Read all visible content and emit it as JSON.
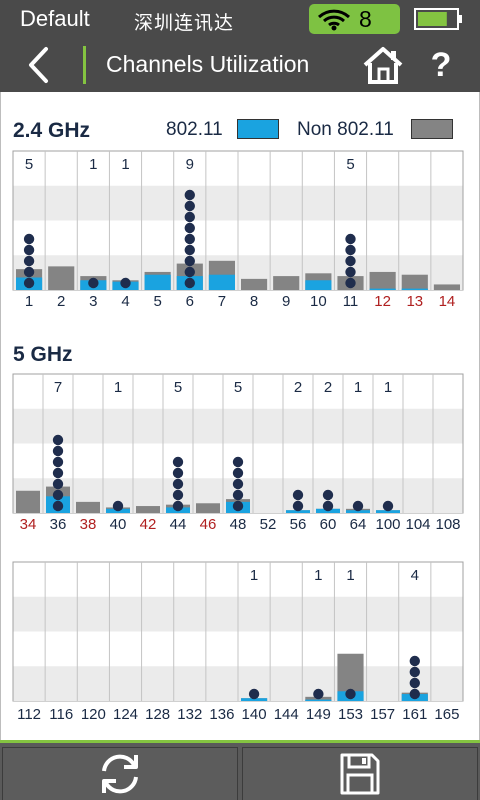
{
  "status": {
    "profile": "Default",
    "company": "深圳连讯达",
    "wifi_count": "8",
    "icons": [
      "wifi-icon",
      "battery-icon"
    ],
    "battery_level": 0.8
  },
  "title_bar": {
    "title": "Channels Utilization",
    "icons": [
      "back-arrow-icon",
      "home-icon",
      "help-icon"
    ],
    "help_label": "?"
  },
  "legend": {
    "band_24": "2.4 GHz",
    "band_5": "5 GHz",
    "label_80211": "802.11",
    "label_non": "Non 802.11",
    "color_80211": "#1aa3e0",
    "color_non": "#848484"
  },
  "colors": {
    "dot": "#1f2d4d",
    "restricted_channel": "#b02020",
    "normal_channel": "#1a2a44",
    "accent": "#84c441"
  },
  "chart_data": [
    {
      "type": "bar",
      "title": "2.4 GHz",
      "categories": [
        "1",
        "2",
        "3",
        "4",
        "5",
        "6",
        "7",
        "8",
        "9",
        "10",
        "11",
        "12",
        "13",
        "14"
      ],
      "restricted": [
        "12",
        "13",
        "14"
      ],
      "series": [
        {
          "name": "802.11",
          "values": [
            9,
            0,
            7,
            6,
            11,
            10,
            11,
            0,
            0,
            7,
            0,
            1,
            1,
            0
          ]
        },
        {
          "name": "Non 802.11",
          "values": [
            15,
            17,
            10,
            7,
            13,
            19,
            21,
            8,
            10,
            12,
            10,
            13,
            11,
            4
          ]
        }
      ],
      "ap_counts": [
        5,
        0,
        1,
        1,
        0,
        9,
        0,
        0,
        0,
        0,
        5,
        0,
        0,
        0
      ],
      "ap_count_labels": [
        "5",
        "",
        "1",
        "1",
        "",
        "9",
        "",
        "",
        "",
        "",
        "5",
        "",
        "",
        ""
      ],
      "ylim": [
        0,
        100
      ]
    },
    {
      "type": "bar",
      "title": "5 GHz",
      "categories": [
        "34",
        "36",
        "38",
        "40",
        "42",
        "44",
        "46",
        "48",
        "52",
        "56",
        "60",
        "64",
        "100",
        "104",
        "108"
      ],
      "restricted": [
        "34",
        "38",
        "42",
        "46"
      ],
      "series": [
        {
          "name": "802.11",
          "values": [
            0,
            12,
            0,
            3,
            0,
            4,
            0,
            8,
            0,
            2,
            3,
            2,
            2,
            0,
            0
          ]
        },
        {
          "name": "Non 802.11",
          "values": [
            16,
            19,
            8,
            4,
            5,
            6,
            7,
            10,
            0,
            2,
            3,
            3,
            2,
            0,
            0
          ]
        }
      ],
      "ap_counts": [
        0,
        7,
        0,
        1,
        0,
        5,
        0,
        5,
        0,
        2,
        2,
        1,
        1,
        0,
        0
      ],
      "ap_count_labels": [
        "",
        "7",
        "",
        "1",
        "",
        "5",
        "",
        "5",
        "",
        "2",
        "2",
        "1",
        "1",
        "",
        ""
      ],
      "ylim": [
        0,
        100
      ]
    },
    {
      "type": "bar",
      "title": "",
      "categories": [
        "112",
        "116",
        "120",
        "124",
        "128",
        "132",
        "136",
        "140",
        "144",
        "149",
        "153",
        "157",
        "161",
        "165"
      ],
      "restricted": [],
      "series": [
        {
          "name": "802.11",
          "values": [
            0,
            0,
            0,
            0,
            0,
            0,
            0,
            2,
            0,
            1,
            7,
            0,
            5,
            0
          ]
        },
        {
          "name": "Non 802.11",
          "values": [
            0,
            0,
            0,
            0,
            0,
            0,
            0,
            2,
            0,
            3,
            34,
            0,
            6,
            0
          ]
        }
      ],
      "ap_counts": [
        0,
        0,
        0,
        0,
        0,
        0,
        0,
        1,
        0,
        1,
        1,
        0,
        4,
        0
      ],
      "ap_count_labels": [
        "",
        "",
        "",
        "",
        "",
        "",
        "",
        "1",
        "",
        "1",
        "1",
        "",
        "4",
        ""
      ],
      "ylim": [
        0,
        100
      ]
    }
  ],
  "bottom_bar": {
    "icons": [
      "refresh-icon",
      "save-icon"
    ]
  }
}
